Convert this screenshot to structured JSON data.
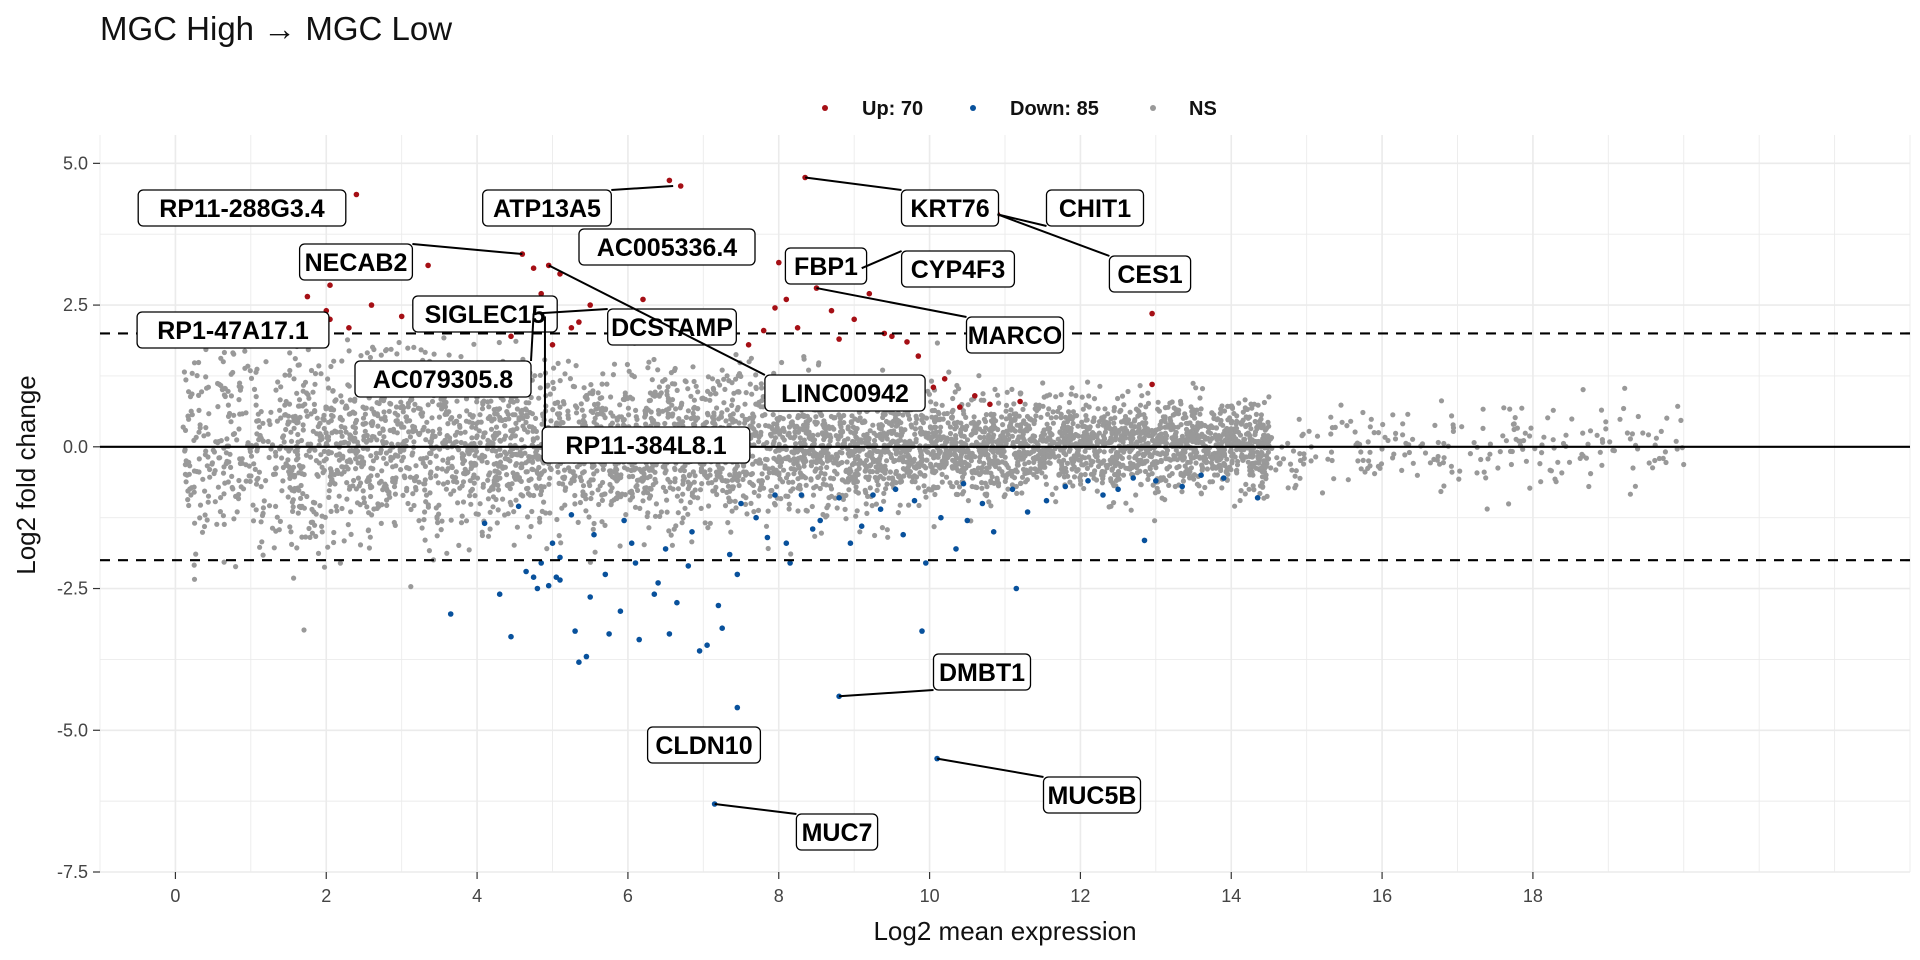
{
  "chart_data": {
    "type": "scatter",
    "title": "MGC High → MGC Low",
    "xlabel": "Log2 mean expression",
    "ylabel": "Log2 fold change",
    "xlim": [
      -1,
      23
    ],
    "ylim": [
      -7.5,
      5.5
    ],
    "x_ticks": [
      0,
      2,
      4,
      6,
      8,
      10,
      12,
      14,
      16,
      18
    ],
    "y_ticks": [
      5.0,
      2.5,
      0.0,
      -2.5,
      -5.0,
      -7.5
    ],
    "y_tick_labels": [
      "5.0",
      "2.5",
      "0.0",
      "-2.5",
      "-5.0",
      "-7.5"
    ],
    "thresholds": [
      2,
      -2
    ],
    "grid": true,
    "legend_position": "top",
    "legend": [
      {
        "label": "Up: 70",
        "color": "#a50f15"
      },
      {
        "label": "Down: 85",
        "color": "#08519c"
      },
      {
        "label": "NS",
        "color": "#999999"
      }
    ],
    "colors": {
      "up": "#a50f15",
      "down": "#08519c",
      "ns": "#999999"
    },
    "series": [
      {
        "name": "Up: 70",
        "points": [
          [
            2.4,
            4.45
          ],
          [
            6.55,
            4.7
          ],
          [
            6.7,
            4.6
          ],
          [
            8.35,
            4.75
          ],
          [
            6.75,
            3.75
          ],
          [
            6.7,
            3.7
          ],
          [
            1.9,
            3.05
          ],
          [
            2.05,
            2.85
          ],
          [
            1.75,
            2.65
          ],
          [
            2.0,
            2.4
          ],
          [
            2.05,
            2.25
          ],
          [
            1.5,
            1.8
          ],
          [
            2.6,
            2.5
          ],
          [
            3.35,
            3.2
          ],
          [
            4.6,
            3.4
          ],
          [
            4.75,
            3.15
          ],
          [
            4.95,
            3.2
          ],
          [
            5.1,
            3.05
          ],
          [
            4.85,
            2.7
          ],
          [
            4.6,
            2.4
          ],
          [
            4.9,
            2.3
          ],
          [
            4.75,
            2.35
          ],
          [
            5.0,
            1.8
          ],
          [
            5.25,
            2.1
          ],
          [
            4.45,
            1.95
          ],
          [
            4.2,
            2.4
          ],
          [
            3.9,
            2.3
          ],
          [
            5.95,
            3.35
          ],
          [
            7.15,
            3.25
          ],
          [
            8.0,
            3.25
          ],
          [
            8.35,
            3.0
          ],
          [
            8.5,
            2.8
          ],
          [
            9.1,
            3.15
          ],
          [
            8.25,
            2.1
          ],
          [
            7.8,
            2.05
          ],
          [
            7.6,
            1.8
          ],
          [
            6.4,
            2.0
          ],
          [
            6.5,
            1.95
          ],
          [
            9.2,
            2.7
          ],
          [
            8.8,
            1.9
          ],
          [
            9.4,
            2.0
          ],
          [
            9.7,
            1.85
          ],
          [
            9.85,
            1.6
          ],
          [
            10.05,
            1.05
          ],
          [
            10.4,
            0.7
          ],
          [
            10.9,
            4.1
          ],
          [
            12.95,
            2.35
          ],
          [
            12.95,
            1.1
          ],
          [
            3.0,
            2.3
          ],
          [
            5.5,
            2.5
          ],
          [
            8.1,
            2.6
          ],
          [
            7.3,
            2.2
          ],
          [
            9.5,
            1.95
          ],
          [
            10.2,
            1.2
          ],
          [
            3.6,
            2.05
          ],
          [
            6.9,
            2.05
          ],
          [
            10.6,
            0.9
          ],
          [
            4.35,
            2.15
          ],
          [
            5.8,
            2.05
          ],
          [
            7.95,
            2.45
          ],
          [
            9.0,
            2.25
          ],
          [
            2.3,
            2.1
          ],
          [
            11.2,
            0.8
          ],
          [
            6.2,
            2.6
          ],
          [
            3.75,
            2.55
          ],
          [
            8.7,
            2.4
          ],
          [
            10.8,
            0.75
          ],
          [
            5.35,
            2.2
          ],
          [
            1.8,
            2.05
          ],
          [
            6.6,
            2.3
          ]
        ]
      },
      {
        "name": "Down: 85",
        "points": [
          [
            5.0,
            -1.7
          ],
          [
            5.1,
            -1.95
          ],
          [
            4.85,
            -2.05
          ],
          [
            5.05,
            -2.3
          ],
          [
            4.95,
            -2.45
          ],
          [
            5.1,
            -2.35
          ],
          [
            4.75,
            -2.3
          ],
          [
            4.8,
            -2.5
          ],
          [
            4.65,
            -2.2
          ],
          [
            5.55,
            -1.55
          ],
          [
            5.7,
            -2.25
          ],
          [
            5.5,
            -2.65
          ],
          [
            3.65,
            -2.95
          ],
          [
            4.45,
            -3.35
          ],
          [
            5.3,
            -3.25
          ],
          [
            5.35,
            -3.8
          ],
          [
            5.45,
            -3.7
          ],
          [
            5.75,
            -3.3
          ],
          [
            6.15,
            -3.4
          ],
          [
            6.55,
            -3.3
          ],
          [
            6.65,
            -2.75
          ],
          [
            6.95,
            -3.6
          ],
          [
            7.05,
            -3.5
          ],
          [
            7.25,
            -3.2
          ],
          [
            7.45,
            -4.6
          ],
          [
            8.8,
            -4.4
          ],
          [
            9.9,
            -3.25
          ],
          [
            10.1,
            -5.5
          ],
          [
            7.15,
            -6.3
          ],
          [
            8.7,
            -7.0
          ],
          [
            12.85,
            -1.65
          ],
          [
            11.15,
            -2.5
          ],
          [
            7.35,
            -1.9
          ],
          [
            7.45,
            -2.25
          ],
          [
            6.35,
            -2.6
          ],
          [
            6.4,
            -2.4
          ],
          [
            6.05,
            -1.7
          ],
          [
            6.1,
            -2.05
          ],
          [
            7.7,
            -1.25
          ],
          [
            8.15,
            -2.05
          ],
          [
            8.1,
            -1.7
          ],
          [
            8.55,
            -1.3
          ],
          [
            9.1,
            -1.4
          ],
          [
            9.65,
            -1.55
          ],
          [
            9.95,
            -2.05
          ],
          [
            10.35,
            -1.8
          ],
          [
            10.5,
            -1.3
          ],
          [
            10.85,
            -1.5
          ],
          [
            11.3,
            -1.15
          ],
          [
            13.35,
            -0.7
          ],
          [
            14.35,
            -0.9
          ],
          [
            9.25,
            -0.85
          ],
          [
            8.8,
            -0.9
          ],
          [
            8.3,
            -0.85
          ],
          [
            7.95,
            -0.85
          ],
          [
            9.55,
            -0.75
          ],
          [
            10.45,
            -0.65
          ],
          [
            11.1,
            -0.75
          ],
          [
            12.1,
            -0.6
          ],
          [
            12.7,
            -0.55
          ],
          [
            13.6,
            -0.5
          ],
          [
            4.1,
            -1.35
          ],
          [
            4.55,
            -1.05
          ],
          [
            5.25,
            -1.2
          ],
          [
            6.85,
            -1.5
          ],
          [
            7.5,
            -1.0
          ],
          [
            8.45,
            -1.45
          ],
          [
            9.35,
            -1.1
          ],
          [
            10.15,
            -1.25
          ],
          [
            11.55,
            -0.95
          ],
          [
            12.3,
            -0.85
          ],
          [
            13.0,
            -0.6
          ],
          [
            6.8,
            -2.1
          ],
          [
            5.9,
            -2.9
          ],
          [
            4.3,
            -2.6
          ],
          [
            5.95,
            -1.3
          ],
          [
            7.2,
            -2.8
          ],
          [
            8.95,
            -1.7
          ],
          [
            10.7,
            -1.0
          ],
          [
            11.8,
            -0.7
          ],
          [
            9.8,
            -0.95
          ],
          [
            6.5,
            -1.8
          ],
          [
            7.85,
            -1.6
          ],
          [
            12.5,
            -0.75
          ],
          [
            13.9,
            -0.55
          ]
        ]
      }
    ],
    "labels": [
      {
        "text": "RP11-288G3.4",
        "x": 1.9,
        "y": 3.05
      },
      {
        "text": "ATP13A5",
        "x": 6.6,
        "y": 4.6
      },
      {
        "text": "KRT76",
        "x": 8.35,
        "y": 4.75
      },
      {
        "text": "CHIT1",
        "x": 10.9,
        "y": 4.1
      },
      {
        "text": "NECAB2",
        "x": 4.6,
        "y": 3.4
      },
      {
        "text": "AC005336.4",
        "x": 6.7,
        "y": 3.7
      },
      {
        "text": "FBP1",
        "x": 8.0,
        "y": 3.25
      },
      {
        "text": "CYP4F3",
        "x": 9.1,
        "y": 3.15
      },
      {
        "text": "CES1",
        "x": 10.9,
        "y": 4.1
      },
      {
        "text": "RP1-47A17.1",
        "x": 1.5,
        "y": 1.8
      },
      {
        "text": "SIGLEC15",
        "x": 4.6,
        "y": 2.4
      },
      {
        "text": "DCSTAMP",
        "x": 4.75,
        "y": 2.35
      },
      {
        "text": "MARCO",
        "x": 8.5,
        "y": 2.8
      },
      {
        "text": "AC079305.8",
        "x": 4.75,
        "y": 2.35
      },
      {
        "text": "LINC00942",
        "x": 4.95,
        "y": 3.2
      },
      {
        "text": "RP11-384L8.1",
        "x": 4.9,
        "y": 2.3
      },
      {
        "text": "DMBT1",
        "x": 8.8,
        "y": -4.4
      },
      {
        "text": "CLDN10",
        "x": 7.45,
        "y": -4.6
      },
      {
        "text": "MUC5B",
        "x": 10.1,
        "y": -5.5
      },
      {
        "text": "MUC7",
        "x": 7.15,
        "y": -6.3
      }
    ]
  }
}
